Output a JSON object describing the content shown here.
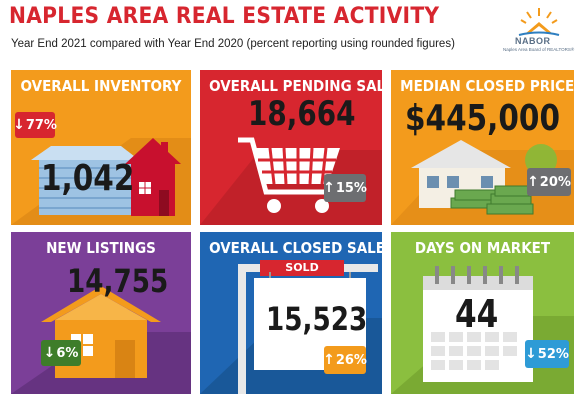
{
  "header": {
    "title": "NAPLES AREA REAL ESTATE ACTIVITY",
    "subtitle": "Year End 2021 compared with Year End 2020 (percent reporting using rounded figures)"
  },
  "logo": {
    "word": "NABOR",
    "subtext": "Naples Area Board of REALTORS®"
  },
  "panels": {
    "inventory": {
      "title": "OVERALL INVENTORY",
      "value": "1,042",
      "change": "77%",
      "direction": "down",
      "bg": "#f39b1c"
    },
    "pending": {
      "title": "OVERALL PENDING SALES",
      "value": "18,664",
      "change": "15%",
      "direction": "up",
      "bg": "#d7262f"
    },
    "median_price": {
      "title": "MEDIAN CLOSED PRICE",
      "value": "$445,000",
      "change": "20%",
      "direction": "up",
      "bg": "#f39b1c"
    },
    "new_listings": {
      "title": "NEW LISTINGS",
      "value": "14,755",
      "change": "6%",
      "direction": "down",
      "bg": "#7b3f98"
    },
    "closed_sales": {
      "title": "OVERALL CLOSED SALES",
      "value": "15,523",
      "change": "26%",
      "direction": "up",
      "bg": "#1f66b3",
      "sign": "SOLD"
    },
    "days_on_market": {
      "title": "DAYS ON MARKET",
      "value": "44",
      "change": "52%",
      "direction": "down",
      "bg": "#8bbf3f"
    }
  },
  "icons": [
    "house-icon",
    "shopping-cart-icon",
    "money-house-icon",
    "house-icon",
    "sold-sign-icon",
    "calendar-icon",
    "down-arrow-icon",
    "up-arrow-icon"
  ]
}
